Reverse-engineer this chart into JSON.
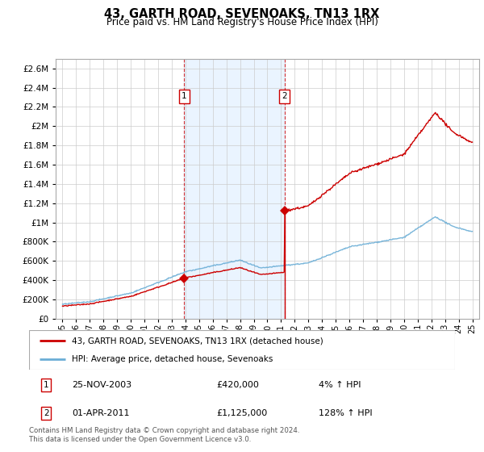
{
  "title": "43, GARTH ROAD, SEVENOAKS, TN13 1RX",
  "subtitle": "Price paid vs. HM Land Registry's House Price Index (HPI)",
  "legend_line1": "43, GARTH ROAD, SEVENOAKS, TN13 1RX (detached house)",
  "legend_line2": "HPI: Average price, detached house, Sevenoaks",
  "annotation1_date": "25-NOV-2003",
  "annotation1_price": "£420,000",
  "annotation1_hpi": "4% ↑ HPI",
  "annotation2_date": "01-APR-2011",
  "annotation2_price": "£1,125,000",
  "annotation2_hpi": "128% ↑ HPI",
  "footer": "Contains HM Land Registry data © Crown copyright and database right 2024.\nThis data is licensed under the Open Government Licence v3.0.",
  "sale1_year": 2003.9,
  "sale1_price": 420000,
  "sale2_year": 2011.25,
  "sale2_price": 1125000,
  "hpi_color": "#6baed6",
  "price_color": "#cc0000",
  "shade_color": "#ddeeff",
  "ylim_max": 2700000,
  "xlim_min": 1994.5,
  "xlim_max": 2025.5
}
